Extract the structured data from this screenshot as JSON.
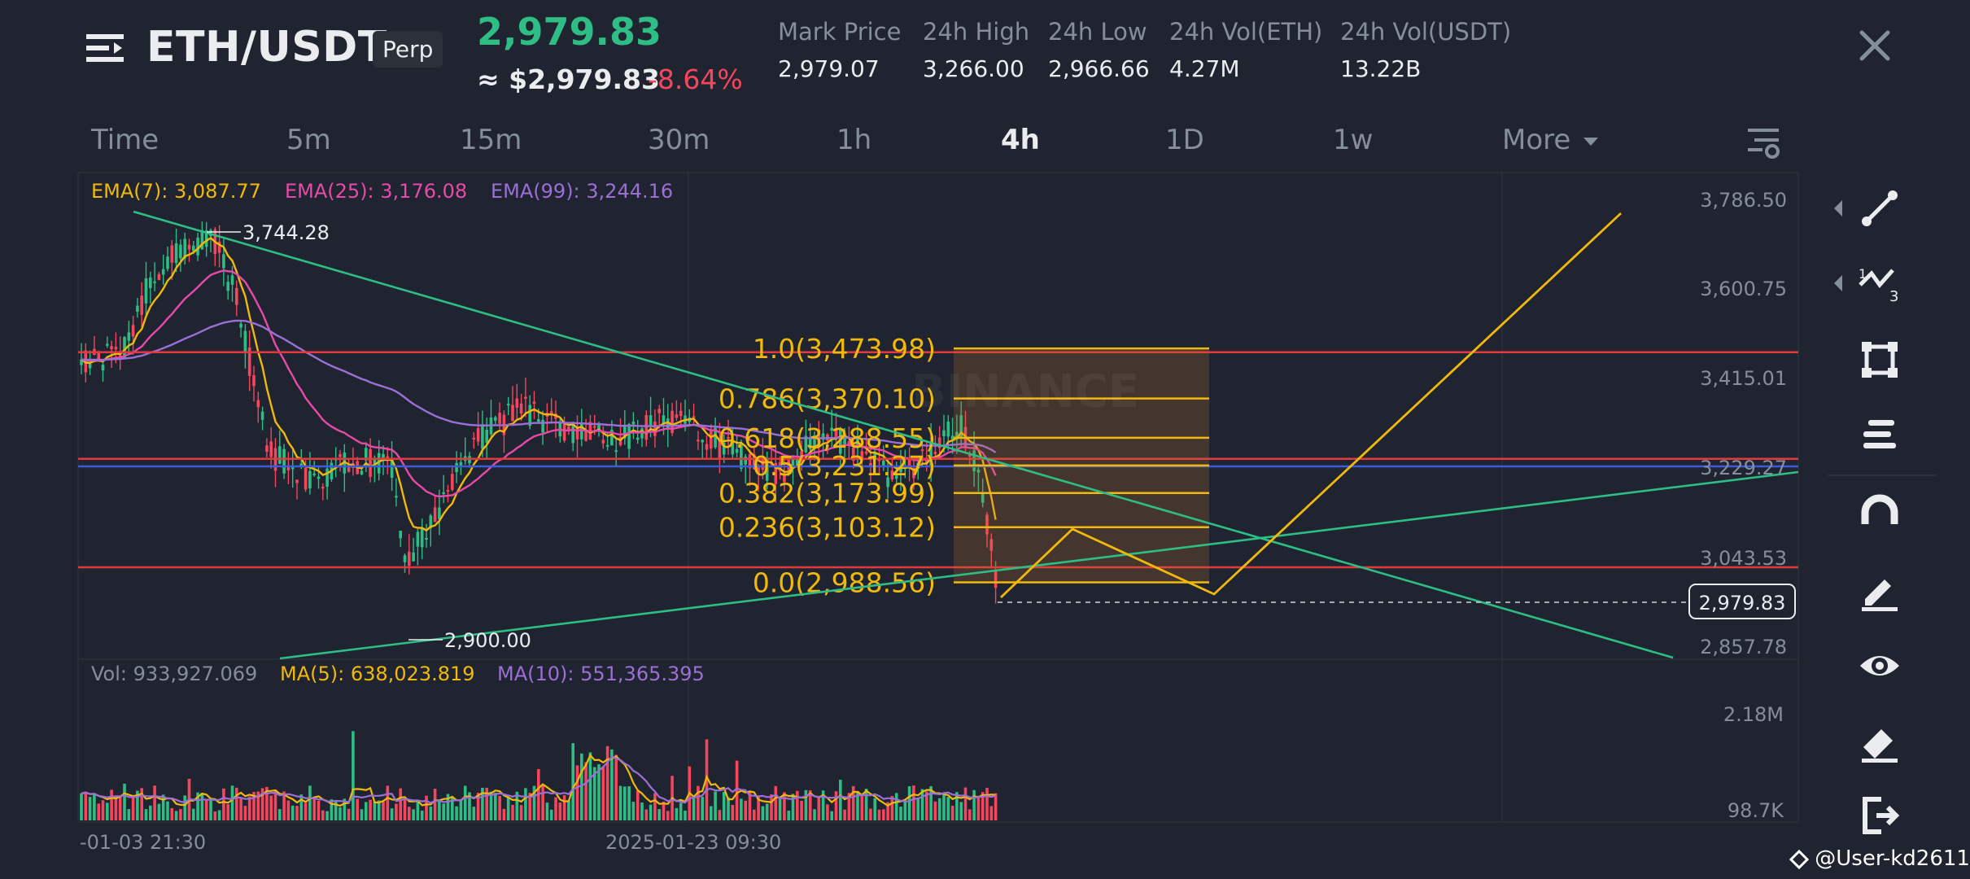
{
  "header": {
    "pair": "ETH/USDT",
    "contract_badge": "Perp",
    "last_price": "2,979.83",
    "approx_price": "≈ $2,979.83",
    "change_pct": "-8.64%",
    "stats": [
      {
        "label": "Mark Price",
        "value": "2,979.07"
      },
      {
        "label": "24h High",
        "value": "3,266.00"
      },
      {
        "label": "24h Low",
        "value": "2,966.66"
      },
      {
        "label": "24h Vol(ETH)",
        "value": "4.27M"
      },
      {
        "label": "24h Vol(USDT)",
        "value": "13.22B"
      }
    ]
  },
  "timeframes": [
    {
      "label": "Time",
      "active": false
    },
    {
      "label": "5m",
      "active": false
    },
    {
      "label": "15m",
      "active": false
    },
    {
      "label": "30m",
      "active": false
    },
    {
      "label": "1h",
      "active": false
    },
    {
      "label": "4h",
      "active": true
    },
    {
      "label": "1D",
      "active": false
    },
    {
      "label": "1w",
      "active": false
    },
    {
      "label": "More",
      "active": false
    }
  ],
  "indicators": {
    "ema": [
      {
        "label": "EMA(7): 3,087.77",
        "color": "#f0b90b"
      },
      {
        "label": "EMA(25): 3,176.08",
        "color": "#e84aa9"
      },
      {
        "label": "EMA(99): 3,244.16",
        "color": "#9b6fd6"
      }
    ],
    "volume": [
      {
        "label": "Vol: 933,927.069",
        "color": "#848e9c"
      },
      {
        "label": "MA(5): 638,023.819",
        "color": "#f0b90b"
      },
      {
        "label": "MA(10): 551,365.395",
        "color": "#9b6fd6"
      }
    ]
  },
  "price_axis": {
    "ticks": [
      "3,786.50",
      "3,600.75",
      "3,415.01",
      "3,229.27",
      "3,043.53",
      "2,857.78"
    ],
    "last_price_tag": "2,979.83",
    "volume_ticks": [
      "2.18M",
      "98.7K"
    ]
  },
  "time_axis": {
    "labels": [
      "-01-03 21:30",
      "2025-01-23 09:30"
    ]
  },
  "chart_annotations": {
    "high_marker": "3,744.28",
    "low_marker": "2,900.00",
    "fib_levels": [
      {
        "label": "1.0(3,473.98)",
        "price": 3473.98
      },
      {
        "label": "0.786(3,370.10)",
        "price": 3370.1
      },
      {
        "label": "0.618(3,288.55)",
        "price": 3288.55
      },
      {
        "label": "0.5(3,231.27)",
        "price": 3231.27
      },
      {
        "label": "0.382(3,173.99)",
        "price": 3173.99
      },
      {
        "label": "0.236(3,103.12)",
        "price": 3103.12
      },
      {
        "label": "0.0(2,988.56)",
        "price": 2988.56
      }
    ],
    "horizontal_lines": [
      {
        "price": 3466,
        "color": "#e0393e"
      },
      {
        "price": 3245,
        "color": "#e0393e"
      },
      {
        "price": 3229.27,
        "color": "#3b5bdb"
      },
      {
        "price": 3020,
        "color": "#e0393e"
      }
    ],
    "watermark_text": "BINANCE"
  },
  "tools": [
    {
      "name": "trendline-tool-icon",
      "has_submenu": true
    },
    {
      "name": "pattern-tool-icon",
      "has_submenu": true
    },
    {
      "name": "shape-tool-icon",
      "has_submenu": false
    },
    {
      "name": "fibonacci-tool-icon",
      "has_submenu": false
    },
    {
      "name": "magnet-icon",
      "has_submenu": false
    },
    {
      "name": "pencil-icon",
      "has_submenu": false
    },
    {
      "name": "eye-icon",
      "has_submenu": false
    },
    {
      "name": "eraser-icon",
      "has_submenu": false
    },
    {
      "name": "exit-icon",
      "has_submenu": false
    }
  ],
  "user_watermark": "@User-kd2611",
  "colors": {
    "background": "#1f2430",
    "up": "#2ebd85",
    "down": "#f6465d",
    "accent": "#f0b90b"
  }
}
